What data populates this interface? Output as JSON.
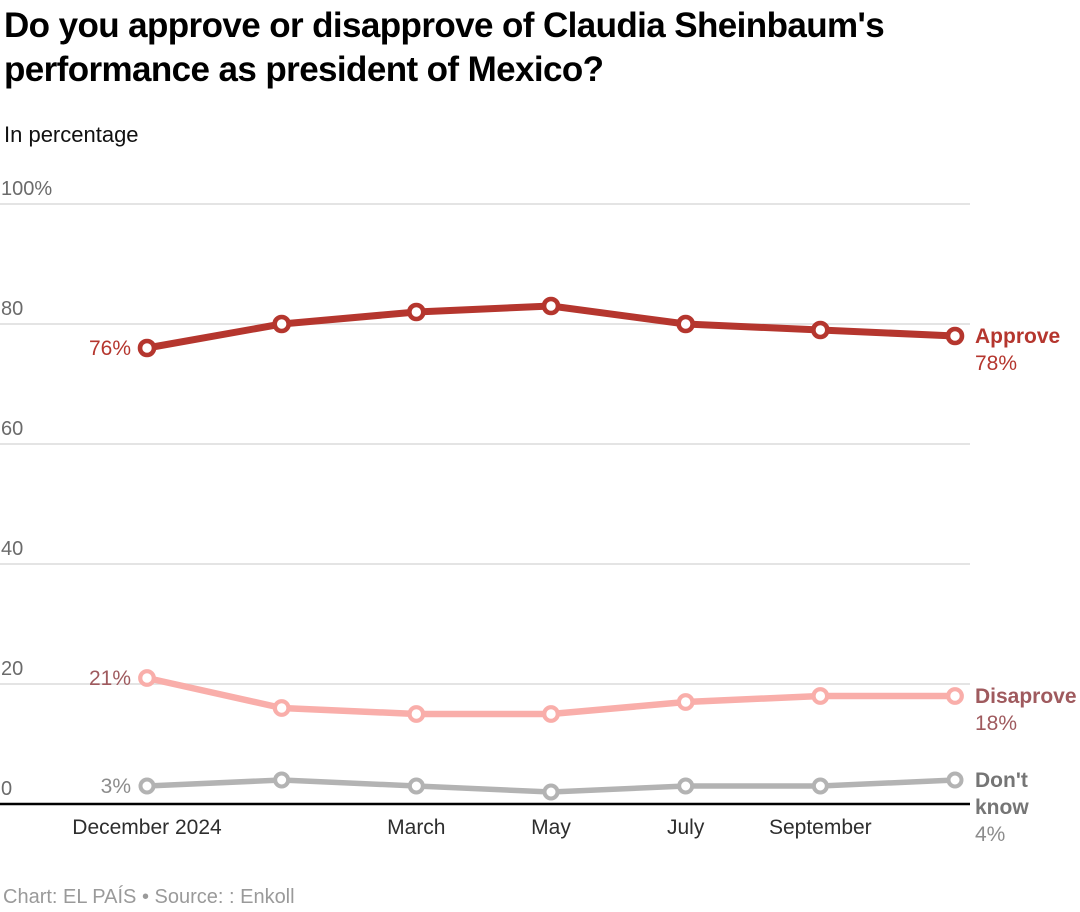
{
  "header": {
    "title": "Do you approve or disapprove of Claudia Sheinbaum's performance as president of Mexico?",
    "subtitle": "In percentage"
  },
  "footer": {
    "text": "Chart: EL PAÍS • Source: : Enkoll"
  },
  "colors": {
    "grid": "#dcdcdc",
    "axis": "#000000",
    "tick_label": "#6b6b6b",
    "x_label": "#2e2e2e",
    "title": "#000000",
    "footer": "#9a9a9a"
  },
  "chart_data": {
    "type": "line",
    "title": "Do you approve or disapprove of Claudia Sheinbaum's performance as president of Mexico?",
    "subtitle": "In percentage",
    "num_points": 7,
    "x_labels": [
      {
        "index": 0,
        "label": "December 2024"
      },
      {
        "index": 2,
        "label": "March"
      },
      {
        "index": 3,
        "label": "May"
      },
      {
        "index": 4,
        "label": "July"
      },
      {
        "index": 5,
        "label": "September"
      }
    ],
    "ylim": [
      0,
      100
    ],
    "y_ticks": [
      {
        "value": 0,
        "label": "0"
      },
      {
        "value": 20,
        "label": "20"
      },
      {
        "value": 40,
        "label": "40"
      },
      {
        "value": 60,
        "label": "60"
      },
      {
        "value": 80,
        "label": "80"
      },
      {
        "value": 100,
        "label": "100%"
      }
    ],
    "grid": true,
    "legend_position": "right-of-line-ends",
    "series": [
      {
        "id": "approve",
        "name": "Approve",
        "values": [
          76,
          80,
          82,
          83,
          80,
          79,
          78
        ],
        "line_color": "#b5362e",
        "label_color": "#b5362e",
        "value_label_color": "#b5362e",
        "start_label": "76%",
        "end_label_lines": [
          "Approve"
        ],
        "end_value_label": "78%"
      },
      {
        "id": "disapprove",
        "name": "Disaprove",
        "values": [
          21,
          16,
          15,
          15,
          17,
          18,
          18
        ],
        "line_color": "#f9aeaa",
        "label_color": "#9f5a5e",
        "value_label_color": "#9f5a5e",
        "start_label": "21%",
        "end_label_lines": [
          "Disaprove"
        ],
        "end_value_label": "18%"
      },
      {
        "id": "dontknow",
        "name": "Don't know",
        "values": [
          3,
          4,
          3,
          2,
          3,
          3,
          4
        ],
        "line_color": "#b3b3b3",
        "label_color": "#757575",
        "value_label_color": "#8c8c8c",
        "start_label": "3%",
        "end_label_lines": [
          "Don't",
          "know"
        ],
        "end_value_label": "4%"
      }
    ]
  }
}
